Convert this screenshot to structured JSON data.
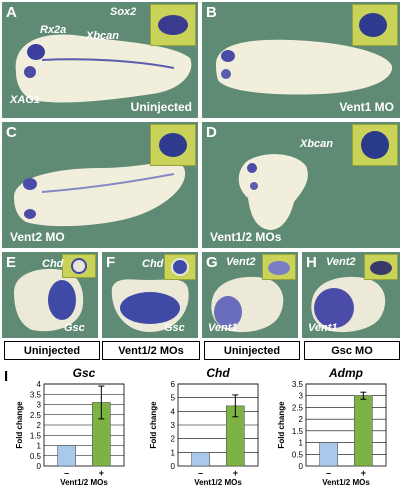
{
  "panels": {
    "A": {
      "letter": "A",
      "labels": [
        "Rx2a",
        "Xbcan",
        "Sox2",
        "XAG1"
      ],
      "caption": "Uninjected"
    },
    "B": {
      "letter": "B",
      "caption": "Vent1 MO"
    },
    "C": {
      "letter": "C",
      "caption": "Vent2 MO"
    },
    "D": {
      "letter": "D",
      "label": "Xbcan",
      "caption": "Vent1/2 MOs"
    },
    "E": {
      "letter": "E",
      "inset_label": "Chd",
      "label": "Gsc"
    },
    "F": {
      "letter": "F",
      "inset_label": "Chd",
      "label": "Gsc"
    },
    "G": {
      "letter": "G",
      "inset_label": "Vent2",
      "label": "Vent1"
    },
    "H": {
      "letter": "H",
      "inset_label": "Vent2",
      "label": "Vent1"
    }
  },
  "group_labels": [
    "Uninjected",
    "Vent1/2 MOs",
    "Uninjected",
    "Gsc MO"
  ],
  "section_i_letter": "I",
  "chart_data": [
    {
      "type": "bar",
      "title": "Gsc",
      "ylabel": "Fold change",
      "xlabel": "Vent1/2 MOs",
      "categories": [
        "–",
        "+"
      ],
      "values": [
        1,
        3.1
      ],
      "errors": [
        0,
        0.8
      ],
      "ylim": [
        0,
        4
      ],
      "yticks": [
        0.5,
        1,
        1.5,
        2,
        2.5,
        3,
        3.5,
        4
      ],
      "colors": [
        "#a9c9ea",
        "#7cb342"
      ],
      "grid": true
    },
    {
      "type": "bar",
      "title": "Chd",
      "ylabel": "Fold change",
      "xlabel": "Vent1/2 MOs",
      "categories": [
        "–",
        "+"
      ],
      "values": [
        1,
        4.4
      ],
      "errors": [
        0,
        0.8
      ],
      "ylim": [
        0,
        6
      ],
      "yticks": [
        1,
        2,
        3,
        4,
        5,
        6
      ],
      "colors": [
        "#a9c9ea",
        "#7cb342"
      ],
      "grid": true
    },
    {
      "type": "bar",
      "title": "Admp",
      "ylabel": "Fold change",
      "xlabel": "Vent1/2 MOs",
      "categories": [
        "–",
        "+"
      ],
      "values": [
        1,
        3.0
      ],
      "errors": [
        0,
        0.15
      ],
      "ylim": [
        0,
        3.5
      ],
      "yticks": [
        0.5,
        1,
        1.5,
        2,
        2.5,
        3,
        3.5
      ],
      "colors": [
        "#a9c9ea",
        "#7cb342"
      ],
      "grid": true
    }
  ]
}
